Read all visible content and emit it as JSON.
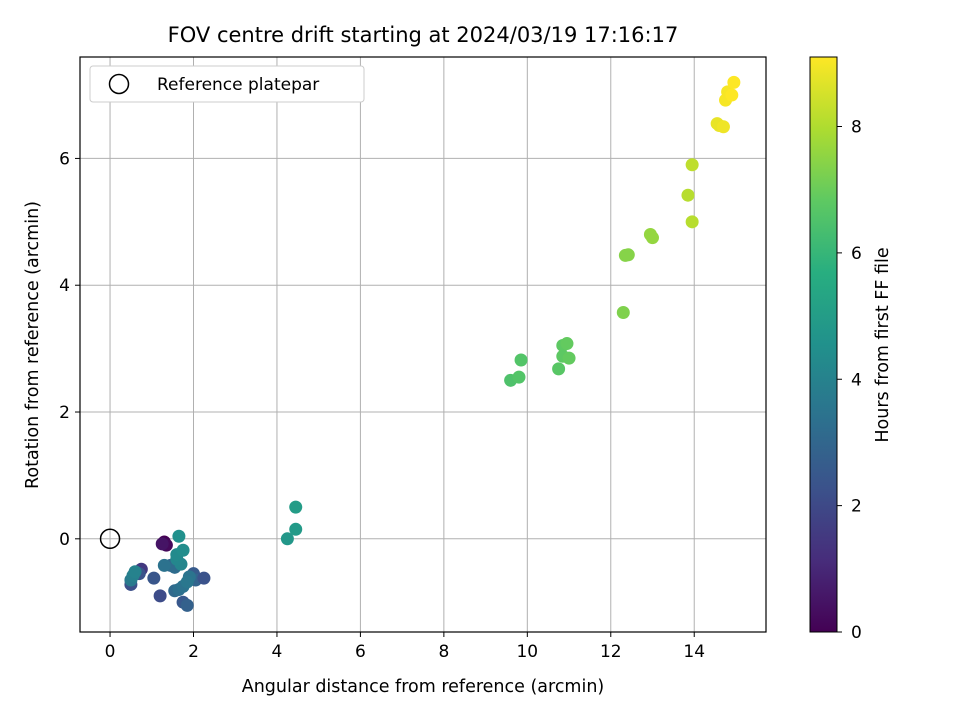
{
  "chart_data": {
    "type": "scatter",
    "title": "FOV centre drift starting at 2024/03/19 17:16:17",
    "xlabel": "Angular distance from reference (arcmin)",
    "ylabel": "Rotation from reference (arcmin)",
    "xlim": [
      -0.72,
      15.72
    ],
    "ylim": [
      -1.47,
      7.6
    ],
    "xticks": [
      0,
      2,
      4,
      6,
      8,
      10,
      12,
      14
    ],
    "yticks": [
      0,
      2,
      4,
      6
    ],
    "grid": true,
    "legend": {
      "placement": "top-left",
      "entries": [
        {
          "label": "Reference platepar",
          "marker": "open-circle"
        }
      ]
    },
    "reference_point": {
      "x": 0,
      "y": 0
    },
    "colorbar": {
      "label": "Hours from first FF file",
      "colormap": "viridis",
      "range": [
        0,
        9.1
      ],
      "ticks": [
        0,
        2,
        4,
        6,
        8
      ]
    },
    "points": [
      {
        "x": 1.3,
        "y": -0.05,
        "h": 0.0
      },
      {
        "x": 1.35,
        "y": -0.1,
        "h": 0.2
      },
      {
        "x": 1.25,
        "y": -0.08,
        "h": 0.5
      },
      {
        "x": 0.75,
        "y": -0.48,
        "h": 1.5
      },
      {
        "x": 0.7,
        "y": -0.55,
        "h": 2.3
      },
      {
        "x": 1.05,
        "y": -0.62,
        "h": 2.4
      },
      {
        "x": 1.2,
        "y": -0.9,
        "h": 2.1
      },
      {
        "x": 0.5,
        "y": -0.72,
        "h": 2.2
      },
      {
        "x": 1.75,
        "y": -1.0,
        "h": 2.5
      },
      {
        "x": 1.85,
        "y": -1.05,
        "h": 2.8
      },
      {
        "x": 2.0,
        "y": -0.55,
        "h": 2.6
      },
      {
        "x": 2.05,
        "y": -0.65,
        "h": 2.9
      },
      {
        "x": 2.25,
        "y": -0.62,
        "h": 2.3
      },
      {
        "x": 1.45,
        "y": -0.42,
        "h": 3.0
      },
      {
        "x": 1.55,
        "y": -0.45,
        "h": 3.2
      },
      {
        "x": 1.55,
        "y": -0.82,
        "h": 3.1
      },
      {
        "x": 1.65,
        "y": -0.8,
        "h": 3.3
      },
      {
        "x": 1.75,
        "y": -0.75,
        "h": 3.4
      },
      {
        "x": 1.3,
        "y": -0.42,
        "h": 3.4
      },
      {
        "x": 1.9,
        "y": -0.6,
        "h": 3.5
      },
      {
        "x": 1.85,
        "y": -0.68,
        "h": 3.6
      },
      {
        "x": 0.5,
        "y": -0.65,
        "h": 3.7
      },
      {
        "x": 0.55,
        "y": -0.58,
        "h": 3.9
      },
      {
        "x": 0.6,
        "y": -0.52,
        "h": 4.0
      },
      {
        "x": 1.7,
        "y": -0.4,
        "h": 4.1
      },
      {
        "x": 1.6,
        "y": -0.32,
        "h": 4.2
      },
      {
        "x": 1.6,
        "y": -0.25,
        "h": 4.3
      },
      {
        "x": 1.75,
        "y": -0.18,
        "h": 4.4
      },
      {
        "x": 1.65,
        "y": 0.04,
        "h": 4.5
      },
      {
        "x": 4.25,
        "y": 0.0,
        "h": 4.8
      },
      {
        "x": 4.45,
        "y": 0.15,
        "h": 4.9
      },
      {
        "x": 4.45,
        "y": 0.5,
        "h": 5.0
      },
      {
        "x": 9.6,
        "y": 2.5,
        "h": 6.5
      },
      {
        "x": 9.8,
        "y": 2.55,
        "h": 6.6
      },
      {
        "x": 9.85,
        "y": 2.82,
        "h": 6.6
      },
      {
        "x": 10.75,
        "y": 2.68,
        "h": 6.7
      },
      {
        "x": 10.85,
        "y": 2.88,
        "h": 6.8
      },
      {
        "x": 10.85,
        "y": 3.05,
        "h": 6.8
      },
      {
        "x": 10.95,
        "y": 3.08,
        "h": 6.9
      },
      {
        "x": 11.0,
        "y": 2.85,
        "h": 6.9
      },
      {
        "x": 12.3,
        "y": 3.57,
        "h": 7.3
      },
      {
        "x": 12.35,
        "y": 4.47,
        "h": 7.4
      },
      {
        "x": 12.42,
        "y": 4.48,
        "h": 7.4
      },
      {
        "x": 12.95,
        "y": 4.8,
        "h": 7.6
      },
      {
        "x": 13.0,
        "y": 4.75,
        "h": 7.6
      },
      {
        "x": 13.85,
        "y": 5.42,
        "h": 8.1
      },
      {
        "x": 13.95,
        "y": 5.9,
        "h": 8.2
      },
      {
        "x": 13.95,
        "y": 5.0,
        "h": 8.1
      },
      {
        "x": 14.55,
        "y": 6.55,
        "h": 8.8
      },
      {
        "x": 14.6,
        "y": 6.52,
        "h": 8.8
      },
      {
        "x": 14.7,
        "y": 6.5,
        "h": 8.9
      },
      {
        "x": 14.75,
        "y": 6.92,
        "h": 9.0
      },
      {
        "x": 14.8,
        "y": 7.05,
        "h": 9.0
      },
      {
        "x": 14.9,
        "y": 7.0,
        "h": 9.1
      },
      {
        "x": 14.95,
        "y": 7.2,
        "h": 9.1
      }
    ]
  }
}
